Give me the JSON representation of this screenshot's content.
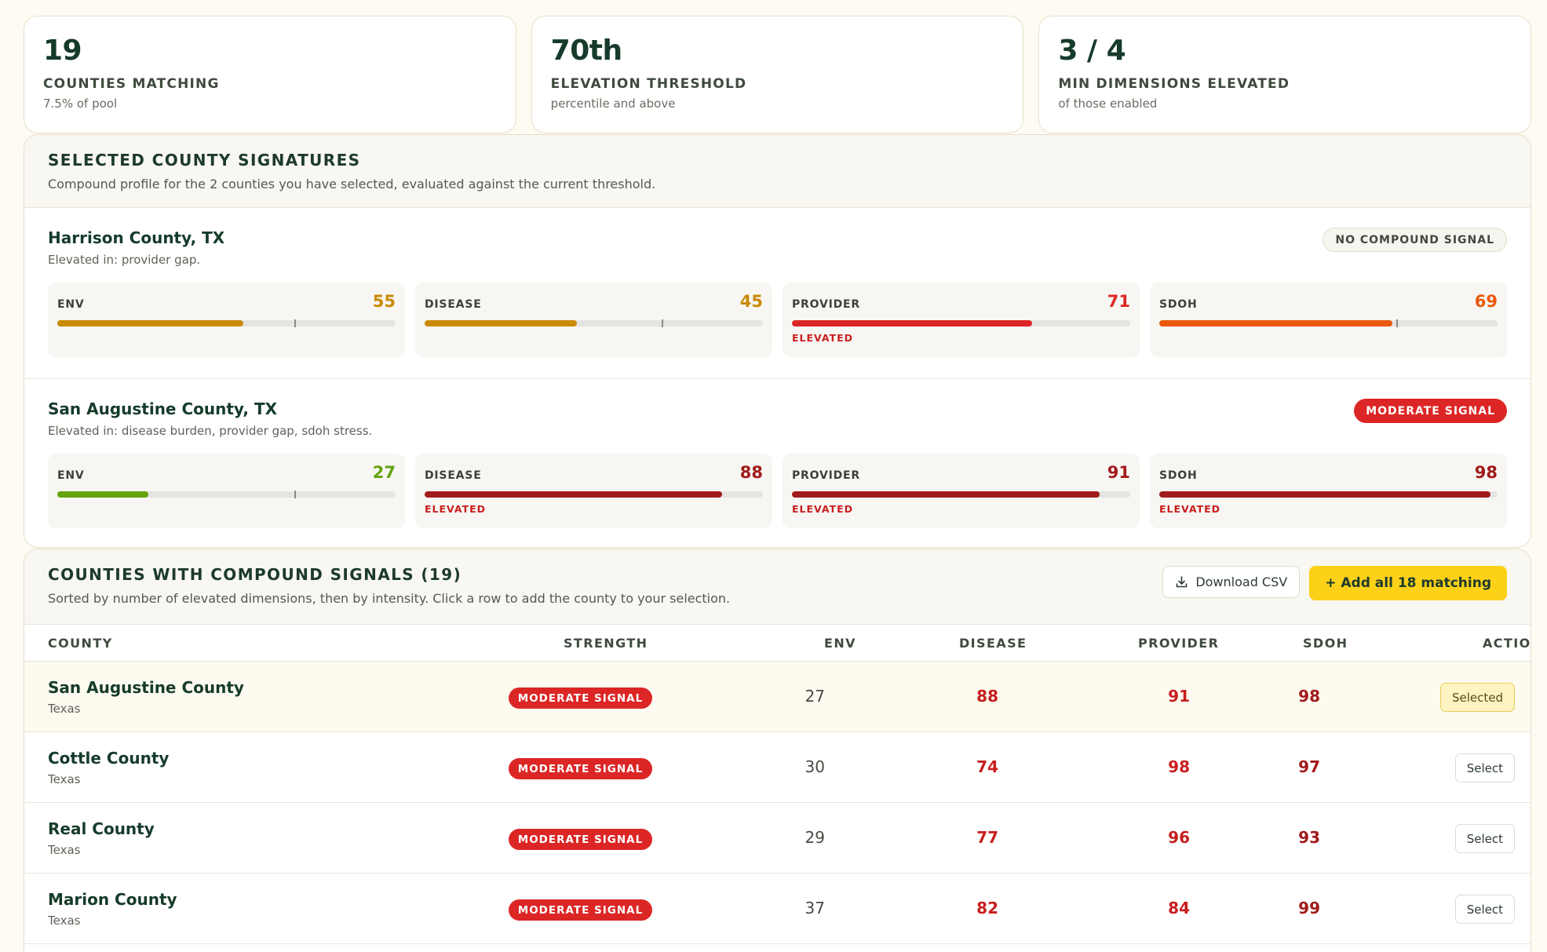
{
  "stats": [
    {
      "value": "19",
      "label": "COUNTIES MATCHING",
      "sub": "7.5% of pool"
    },
    {
      "value": "70th",
      "label": "ELEVATION THRESHOLD",
      "sub": "percentile and above"
    },
    {
      "value": "3 / 4",
      "label": "MIN DIMENSIONS ELEVATED",
      "sub": "of those enabled"
    }
  ],
  "signatures": {
    "title": "SELECTED COUNTY SIGNATURES",
    "description": "Compound profile for the 2 counties you have selected, evaluated against the current threshold.",
    "threshold_percentile": 70,
    "counties": [
      {
        "name": "Harrison County, TX",
        "elevated_text": "Elevated in: provider gap.",
        "badge": "NO COMPOUND SIGNAL",
        "metrics": [
          {
            "label": "ENV",
            "value": "55",
            "percent": 55,
            "color": "#ca8a04",
            "elevated": ""
          },
          {
            "label": "DISEASE",
            "value": "45",
            "percent": 45,
            "color": "#ca8a04",
            "elevated": ""
          },
          {
            "label": "PROVIDER",
            "value": "71",
            "percent": 71,
            "color": "#dc2626",
            "elevated": "ELEVATED"
          },
          {
            "label": "SDOH",
            "value": "69",
            "percent": 69,
            "color": "#ea580c",
            "elevated": ""
          }
        ]
      },
      {
        "name": "San Augustine County, TX",
        "elevated_text": "Elevated in: disease burden, provider gap, sdoh stress.",
        "badge": "MODERATE SIGNAL",
        "metrics": [
          {
            "label": "ENV",
            "value": "27",
            "percent": 27,
            "color": "#65a30d",
            "elevated": ""
          },
          {
            "label": "DISEASE",
            "value": "88",
            "percent": 88,
            "color": "#a11b1b",
            "elevated": "ELEVATED"
          },
          {
            "label": "PROVIDER",
            "value": "91",
            "percent": 91,
            "color": "#a11b1b",
            "elevated": "ELEVATED"
          },
          {
            "label": "SDOH",
            "value": "98",
            "percent": 98,
            "color": "#a11b1b",
            "elevated": "ELEVATED"
          }
        ]
      }
    ]
  },
  "table": {
    "title": "COUNTIES WITH COMPOUND SIGNALS (19)",
    "description": "Sorted by number of elevated dimensions, then by intensity. Click a row to add the county to your selection.",
    "download_label": "Download CSV",
    "add_all_label": "+ Add all 18 matching",
    "columns": {
      "county": "COUNTY",
      "strength": "STRENGTH",
      "env": "ENV",
      "disease": "DISEASE",
      "provider": "PROVIDER",
      "sdoh": "SDOH",
      "action": "ACTION"
    },
    "rows": [
      {
        "name": "San Augustine County",
        "state": "Texas",
        "strength": "MODERATE SIGNAL",
        "env": "27",
        "disease": "88",
        "provider": "91",
        "sdoh": "98",
        "action": "Selected"
      },
      {
        "name": "Cottle County",
        "state": "Texas",
        "strength": "MODERATE SIGNAL",
        "env": "30",
        "disease": "74",
        "provider": "98",
        "sdoh": "97",
        "action": "Select"
      },
      {
        "name": "Real County",
        "state": "Texas",
        "strength": "MODERATE SIGNAL",
        "env": "29",
        "disease": "77",
        "provider": "96",
        "sdoh": "93",
        "action": "Select"
      },
      {
        "name": "Marion County",
        "state": "Texas",
        "strength": "MODERATE SIGNAL",
        "env": "37",
        "disease": "82",
        "provider": "84",
        "sdoh": "99",
        "action": "Select"
      }
    ]
  }
}
